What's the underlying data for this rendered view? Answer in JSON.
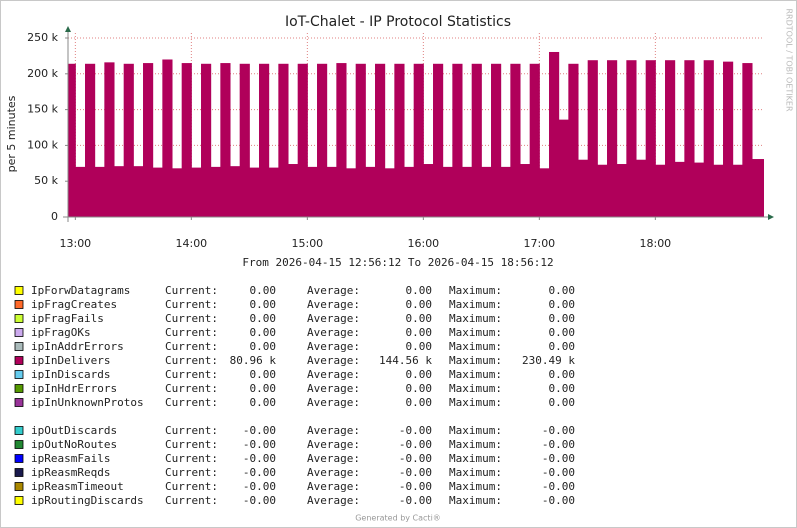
{
  "chart_data": {
    "type": "step-area",
    "title": "IoT-Chalet - IP Protocol Statistics",
    "subtitle": "From 2026-04-15 12:56:12 To 2026-04-15 18:56:12",
    "y_label": "per 5 minutes",
    "side_note": "RRDTOOL / TOBI OETIKER",
    "footer": "Generated by Cacti®",
    "x": [
      "12:55",
      "13:00",
      "13:05",
      "13:10",
      "13:15",
      "13:20",
      "13:25",
      "13:30",
      "13:35",
      "13:40",
      "13:45",
      "13:50",
      "13:55",
      "14:00",
      "14:05",
      "14:10",
      "14:15",
      "14:20",
      "14:25",
      "14:30",
      "14:35",
      "14:40",
      "14:45",
      "14:50",
      "14:55",
      "15:00",
      "15:05",
      "15:10",
      "15:15",
      "15:20",
      "15:25",
      "15:30",
      "15:35",
      "15:40",
      "15:45",
      "15:50",
      "15:55",
      "16:00",
      "16:05",
      "16:10",
      "16:15",
      "16:20",
      "16:25",
      "16:30",
      "16:35",
      "16:40",
      "16:45",
      "16:50",
      "16:55",
      "17:00",
      "17:05",
      "17:10",
      "17:15",
      "17:20",
      "17:25",
      "17:30",
      "17:35",
      "17:40",
      "17:45",
      "17:50",
      "17:55",
      "18:00",
      "18:05",
      "18:10",
      "18:15",
      "18:20",
      "18:25",
      "18:30",
      "18:35",
      "18:40",
      "18:45",
      "18:50",
      "18:55"
    ],
    "series": [
      {
        "name": "ipInDelivers",
        "color": "#b0005a",
        "values": [
          214000,
          70000,
          214000,
          70000,
          216000,
          71000,
          214000,
          71000,
          215000,
          69000,
          220000,
          68000,
          215000,
          69000,
          214000,
          70000,
          215000,
          71000,
          214000,
          69000,
          214000,
          69000,
          214000,
          74000,
          214000,
          70000,
          214000,
          70000,
          215000,
          68000,
          214000,
          70000,
          214000,
          68000,
          214000,
          70000,
          214000,
          74000,
          214000,
          70000,
          214000,
          70000,
          214000,
          70000,
          214000,
          70000,
          214000,
          74000,
          214000,
          68000,
          230490,
          136000,
          214000,
          80000,
          219000,
          73000,
          219000,
          74000,
          219000,
          80000,
          219000,
          73000,
          219000,
          77000,
          219000,
          76000,
          219000,
          73000,
          217000,
          73000,
          215000,
          80960,
          80960
        ]
      }
    ],
    "xlim": [
      "12:56:12",
      "18:56:12"
    ],
    "xticks": [
      "13:00",
      "14:00",
      "15:00",
      "16:00",
      "17:00",
      "18:00"
    ],
    "ylim": [
      0,
      257000
    ],
    "yticks": [
      {
        "value": 0,
        "label": "0"
      },
      {
        "value": 50000,
        "label": "50 k"
      },
      {
        "value": 100000,
        "label": "100 k"
      },
      {
        "value": 150000,
        "label": "150 k"
      },
      {
        "value": 200000,
        "label": "200 k"
      },
      {
        "value": 250000,
        "label": "250 k"
      }
    ],
    "grid": true,
    "stat_labels": [
      "Current:",
      "Average:",
      "Maximum:"
    ],
    "legend": [
      [
        {
          "name": "IpForwDatagrams",
          "color": "#ffff00",
          "current": "0.00",
          "average": "0.00",
          "maximum": "0.00"
        },
        {
          "name": "ipFragCreates",
          "color": "#ff6a2a",
          "current": "0.00",
          "average": "0.00",
          "maximum": "0.00"
        },
        {
          "name": "ipFragFails",
          "color": "#ccff33",
          "current": "0.00",
          "average": "0.00",
          "maximum": "0.00"
        },
        {
          "name": "ipFragOKs",
          "color": "#ccaaee",
          "current": "0.00",
          "average": "0.00",
          "maximum": "0.00"
        },
        {
          "name": "ipInAddrErrors",
          "color": "#aabbbb",
          "current": "0.00",
          "average": "0.00",
          "maximum": "0.00"
        },
        {
          "name": "ipInDelivers",
          "color": "#b0005a",
          "current": "80.96 k",
          "average": "144.56 k",
          "maximum": "230.49 k"
        },
        {
          "name": "ipInDiscards",
          "color": "#66ccee",
          "current": "0.00",
          "average": "0.00",
          "maximum": "0.00"
        },
        {
          "name": "ipInHdrErrors",
          "color": "#559900",
          "current": "0.00",
          "average": "0.00",
          "maximum": "0.00"
        },
        {
          "name": "ipInUnknownProtos",
          "color": "#993399",
          "current": "0.00",
          "average": "0.00",
          "maximum": "0.00"
        }
      ],
      [
        {
          "name": "ipOutDiscards",
          "color": "#33cccc",
          "current": "-0.00",
          "average": "-0.00",
          "maximum": "-0.00"
        },
        {
          "name": "ipOutNoRoutes",
          "color": "#228833",
          "current": "-0.00",
          "average": "-0.00",
          "maximum": "-0.00"
        },
        {
          "name": "ipReasmFails",
          "color": "#0000ff",
          "current": "-0.00",
          "average": "-0.00",
          "maximum": "-0.00"
        },
        {
          "name": "ipReasmReqds",
          "color": "#1a1a4d",
          "current": "-0.00",
          "average": "-0.00",
          "maximum": "-0.00"
        },
        {
          "name": "ipReasmTimeout",
          "color": "#aa8800",
          "current": "-0.00",
          "average": "-0.00",
          "maximum": "-0.00"
        },
        {
          "name": "ipRoutingDiscards",
          "color": "#ffff00",
          "current": "-0.00",
          "average": "-0.00",
          "maximum": "-0.00"
        }
      ]
    ]
  }
}
